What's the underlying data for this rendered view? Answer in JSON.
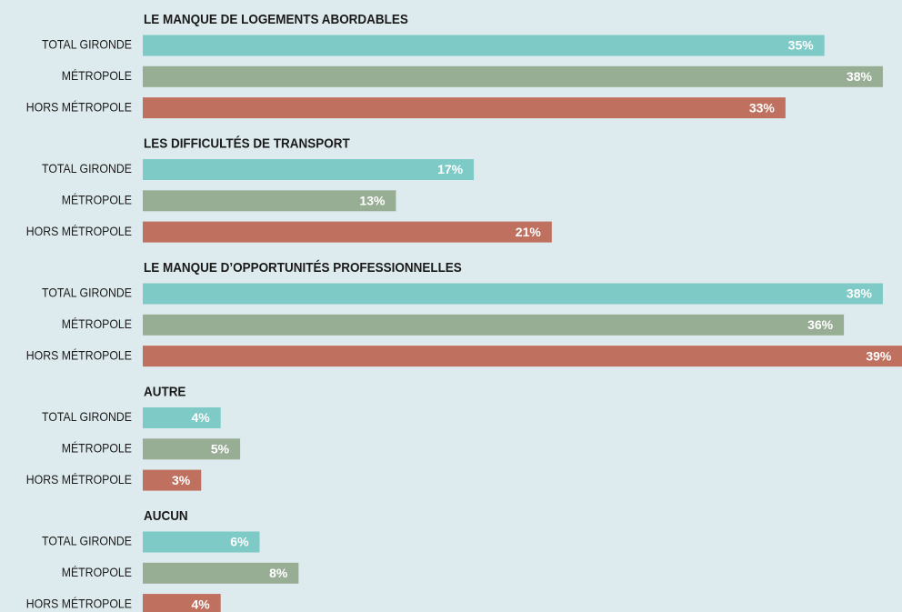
{
  "chart_data": {
    "type": "bar",
    "colors": [
      "#7ecac6",
      "#98ae94",
      "#c0705e"
    ],
    "groups": [
      {
        "title": "LE MANQUE DE LOGEMENTS ABORDABLES",
        "categories": [
          "TOTAL GIRONDE",
          "MÉTROPOLE",
          "HORS MÉTROPOLE"
        ],
        "values": [
          35,
          38,
          33
        ],
        "value_labels": [
          "35%",
          "38%",
          "33%"
        ]
      },
      {
        "title": "LES DIFFICULTÉS DE TRANSPORT",
        "categories": [
          "TOTAL GIRONDE",
          "MÉTROPOLE",
          "HORS MÉTROPOLE"
        ],
        "values": [
          17,
          13,
          21
        ],
        "value_labels": [
          "17%",
          "13%",
          "21%"
        ]
      },
      {
        "title": "LE MANQUE D’OPPORTUNITÉS PROFESSIONNELLES",
        "categories": [
          "TOTAL GIRONDE",
          "MÉTROPOLE",
          "HORS MÉTROPOLE"
        ],
        "values": [
          38,
          36,
          39
        ],
        "value_labels": [
          "38%",
          "36%",
          "39%"
        ]
      },
      {
        "title": "AUTRE",
        "categories": [
          "TOTAL GIRONDE",
          "MÉTROPOLE",
          "HORS MÉTROPOLE"
        ],
        "values": [
          4,
          5,
          3
        ],
        "value_labels": [
          "4%",
          "5%",
          "3%"
        ]
      },
      {
        "title": "AUCUN",
        "categories": [
          "TOTAL GIRONDE",
          "MÉTROPOLE",
          "HORS MÉTROPOLE"
        ],
        "values": [
          6,
          8,
          4
        ],
        "value_labels": [
          "6%",
          "8%",
          "4%"
        ]
      }
    ]
  }
}
